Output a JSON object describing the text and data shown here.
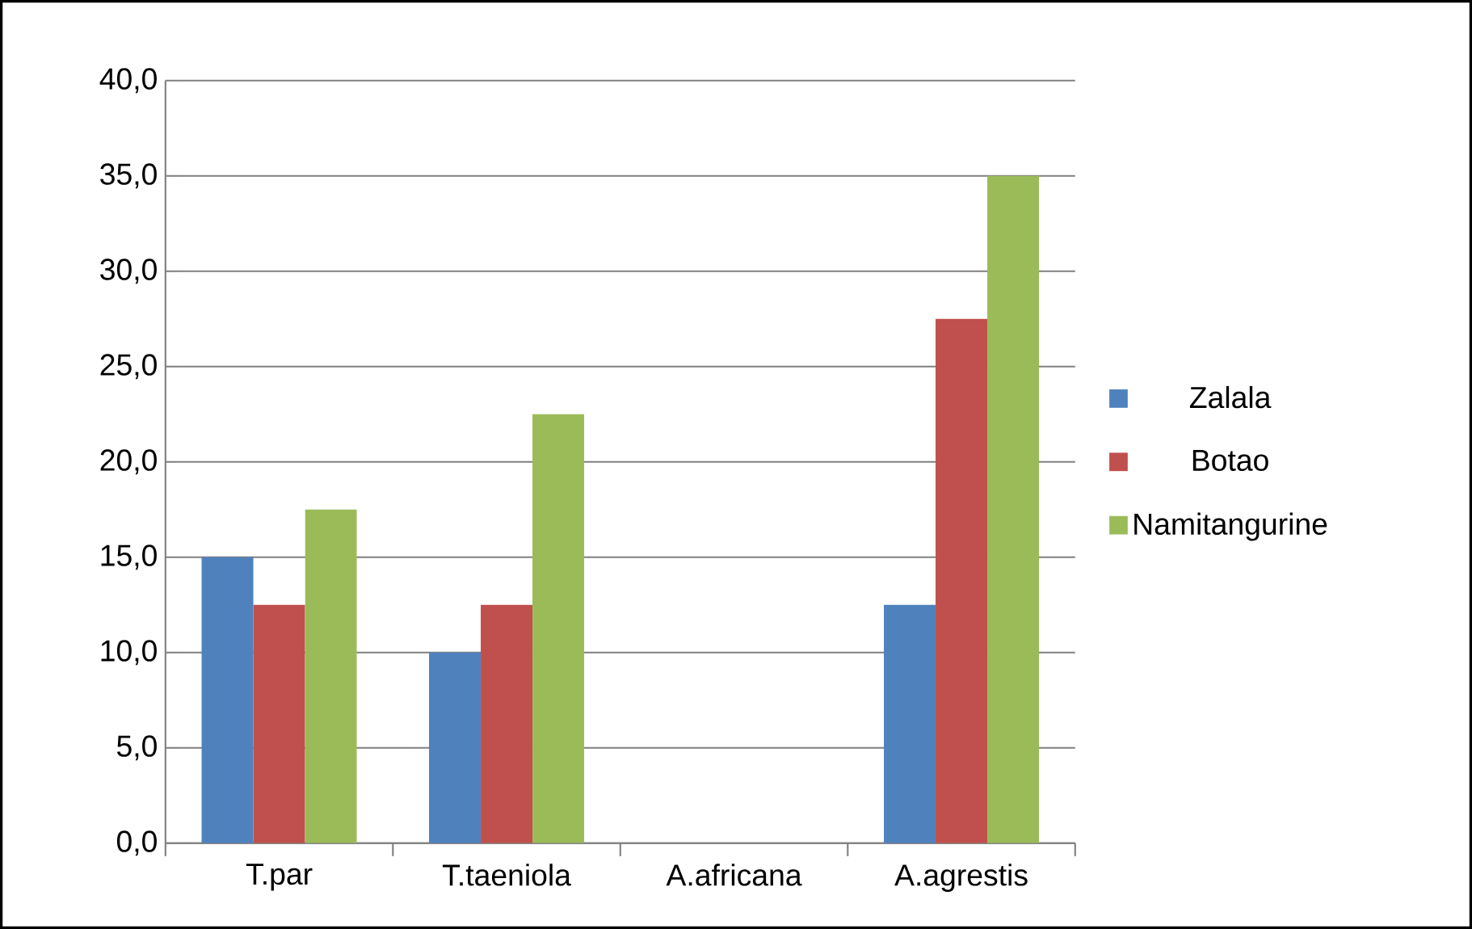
{
  "chart_data": {
    "type": "bar",
    "categories": [
      "T.par",
      "T.taeniola",
      "A.africana",
      "A.agrestis"
    ],
    "series": [
      {
        "name": "Zalala",
        "color": "#4f81bd",
        "values": [
          15.0,
          10.0,
          0.0,
          12.5
        ]
      },
      {
        "name": "Botao",
        "color": "#c0504d",
        "values": [
          12.5,
          12.5,
          0.0,
          27.5
        ]
      },
      {
        "name": "Namitangurine",
        "color": "#9bbb59",
        "values": [
          17.5,
          22.5,
          0.0,
          35.0
        ]
      }
    ],
    "ylim": [
      0,
      40
    ],
    "yticks": [
      {
        "value": 0,
        "label": "0,0"
      },
      {
        "value": 5,
        "label": "5,0"
      },
      {
        "value": 10,
        "label": "10,0"
      },
      {
        "value": 15,
        "label": "15,0"
      },
      {
        "value": 20,
        "label": "20,0"
      },
      {
        "value": 25,
        "label": "25,0"
      },
      {
        "value": 30,
        "label": "30,0"
      },
      {
        "value": 35,
        "label": "35,0"
      },
      {
        "value": 40,
        "label": "40,0"
      }
    ],
    "grid": "y",
    "legend": "right"
  }
}
